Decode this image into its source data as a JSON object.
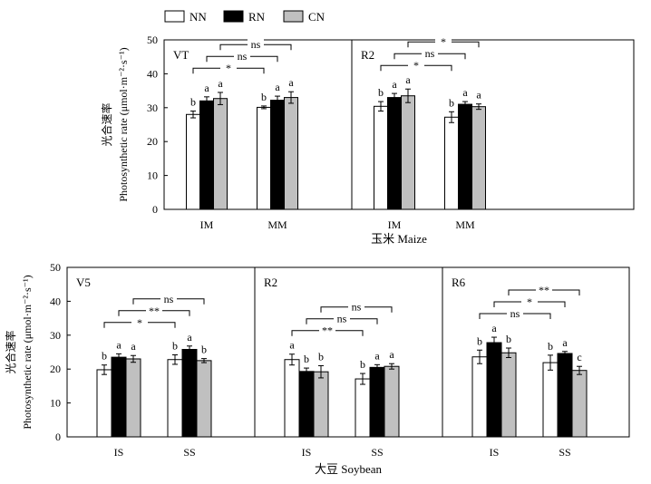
{
  "legend": [
    {
      "name": "NN",
      "color": "#ffffff"
    },
    {
      "name": "RN",
      "color": "#000000"
    },
    {
      "name": "CN",
      "color": "#c0c0c0"
    }
  ],
  "chart_data": [
    {
      "type": "bar",
      "crop": "玉米 Maize",
      "ylabel_cn": "光合速率",
      "ylabel": "Photosynthetic rate (μmol·m⁻²·s⁻¹)",
      "ylim": [
        0,
        50
      ],
      "yticks": [
        0,
        10,
        20,
        30,
        40,
        50
      ],
      "categories": [
        "IM",
        "MM"
      ],
      "series_names": [
        "NN",
        "RN",
        "CN"
      ],
      "panels": [
        {
          "label": "VT",
          "values": [
            [
              28.0,
              32.0,
              32.7
            ],
            [
              30.1,
              32.2,
              33.0
            ]
          ],
          "errors": [
            [
              1.0,
              1.2,
              1.8
            ],
            [
              0.4,
              1.2,
              1.7
            ]
          ],
          "letters": [
            [
              "b",
              "a",
              "a"
            ],
            [
              "b",
              "a",
              "a"
            ]
          ],
          "comparisons": [
            {
              "series": "NN",
              "text": "*"
            },
            {
              "series": "RN",
              "text": "ns"
            },
            {
              "series": "CN",
              "text": "ns"
            }
          ]
        },
        {
          "label": "R2",
          "values": [
            [
              30.4,
              33.0,
              33.5
            ],
            [
              27.2,
              31.0,
              30.3
            ]
          ],
          "errors": [
            [
              1.4,
              1.2,
              2.0
            ],
            [
              1.6,
              0.8,
              0.8
            ]
          ],
          "letters": [
            [
              "b",
              "a",
              "a"
            ],
            [
              "b",
              "a",
              "a"
            ]
          ],
          "comparisons": [
            {
              "series": "NN",
              "text": "*"
            },
            {
              "series": "RN",
              "text": "ns"
            },
            {
              "series": "CN",
              "text": "*"
            }
          ]
        }
      ]
    },
    {
      "type": "bar",
      "crop": "大豆 Soybean",
      "ylabel_cn": "光合速率",
      "ylabel": "Photosynthetic rate (μmol·m⁻²·s⁻¹)",
      "ylim": [
        0,
        50
      ],
      "yticks": [
        0,
        10,
        20,
        30,
        40,
        50
      ],
      "categories": [
        "IS",
        "SS"
      ],
      "series_names": [
        "NN",
        "RN",
        "CN"
      ],
      "panels": [
        {
          "label": "V5",
          "values": [
            [
              19.8,
              23.5,
              23.0
            ],
            [
              22.8,
              25.8,
              22.5
            ]
          ],
          "errors": [
            [
              1.4,
              1.0,
              1.0
            ],
            [
              1.4,
              1.0,
              0.6
            ]
          ],
          "letters": [
            [
              "b",
              "a",
              "a"
            ],
            [
              "b",
              "a",
              "b"
            ]
          ],
          "comparisons": [
            {
              "series": "NN",
              "text": "*"
            },
            {
              "series": "RN",
              "text": "**"
            },
            {
              "series": "CN",
              "text": "ns"
            }
          ]
        },
        {
          "label": "R2",
          "values": [
            [
              22.8,
              19.3,
              19.2
            ],
            [
              17.1,
              20.5,
              20.8
            ]
          ],
          "errors": [
            [
              1.6,
              1.0,
              1.8
            ],
            [
              1.6,
              0.8,
              0.8
            ]
          ],
          "letters": [
            [
              "a",
              "b",
              "b"
            ],
            [
              "b",
              "a",
              "a"
            ]
          ],
          "comparisons": [
            {
              "series": "NN",
              "text": "**"
            },
            {
              "series": "RN",
              "text": "ns"
            },
            {
              "series": "CN",
              "text": "ns"
            }
          ]
        },
        {
          "label": "R6",
          "values": [
            [
              23.6,
              27.8,
              24.8
            ],
            [
              21.9,
              24.6,
              19.6
            ]
          ],
          "errors": [
            [
              2.0,
              1.6,
              1.4
            ],
            [
              2.2,
              0.6,
              1.2
            ]
          ],
          "letters": [
            [
              "b",
              "a",
              "b"
            ],
            [
              "b",
              "a",
              "c"
            ]
          ],
          "comparisons": [
            {
              "series": "NN",
              "text": "ns"
            },
            {
              "series": "RN",
              "text": "*"
            },
            {
              "series": "CN",
              "text": "**"
            }
          ]
        }
      ]
    }
  ]
}
